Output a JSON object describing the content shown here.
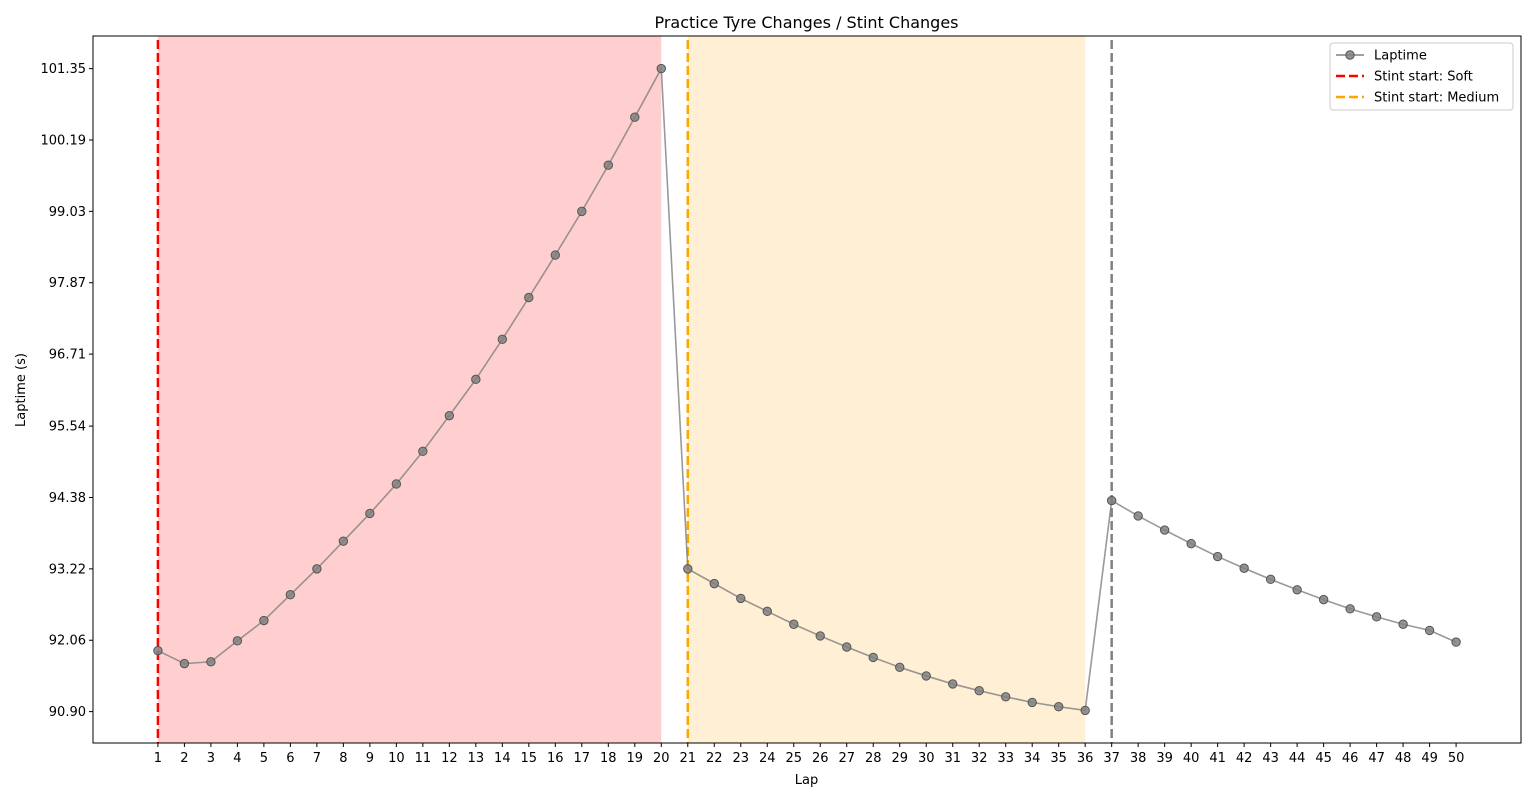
{
  "chart_data": {
    "type": "line",
    "title": "Practice Tyre Changes / Stint Changes",
    "xlabel": "Lap",
    "ylabel": "Laptime (s)",
    "x": [
      1,
      2,
      3,
      4,
      5,
      6,
      7,
      8,
      9,
      10,
      11,
      12,
      13,
      14,
      15,
      16,
      17,
      18,
      19,
      20,
      21,
      22,
      23,
      24,
      25,
      26,
      27,
      28,
      29,
      30,
      31,
      32,
      33,
      34,
      35,
      36,
      37,
      38,
      39,
      40,
      41,
      42,
      43,
      44,
      45,
      46,
      47,
      48,
      49,
      50
    ],
    "xticks": [
      "1",
      "2",
      "3",
      "4",
      "5",
      "6",
      "7",
      "8",
      "9",
      "10",
      "11",
      "12",
      "13",
      "14",
      "15",
      "16",
      "17",
      "18",
      "19",
      "20",
      "21",
      "22",
      "23",
      "24",
      "25",
      "26",
      "27",
      "28",
      "29",
      "30",
      "31",
      "32",
      "33",
      "34",
      "35",
      "36",
      "37",
      "38",
      "39",
      "40",
      "41",
      "42",
      "43",
      "44",
      "45",
      "46",
      "47",
      "48",
      "49",
      "50"
    ],
    "yticks": [
      "90.90",
      "92.06",
      "93.22",
      "94.38",
      "95.54",
      "96.71",
      "97.87",
      "99.03",
      "100.19",
      "101.35"
    ],
    "ytick_values": [
      90.9,
      92.06,
      93.22,
      94.38,
      95.54,
      96.71,
      97.87,
      99.03,
      100.19,
      101.35
    ],
    "xlim": [
      -1.45,
      52.45
    ],
    "ylim": [
      90.39,
      101.88
    ],
    "grid": false,
    "legend_position": "top-right",
    "series": [
      {
        "name": "Laptime",
        "color": "#808080",
        "values": [
          91.89,
          91.68,
          91.71,
          92.05,
          92.38,
          92.8,
          93.22,
          93.67,
          94.12,
          94.6,
          95.13,
          95.71,
          96.3,
          96.95,
          97.63,
          98.32,
          99.03,
          99.78,
          100.56,
          101.35,
          93.22,
          92.98,
          92.74,
          92.53,
          92.32,
          92.13,
          91.95,
          91.78,
          91.62,
          91.48,
          91.35,
          91.24,
          91.14,
          91.05,
          90.98,
          90.92,
          94.33,
          94.08,
          93.85,
          93.63,
          93.42,
          93.23,
          93.05,
          92.88,
          92.72,
          92.57,
          92.44,
          92.32,
          92.22,
          92.03
        ]
      }
    ],
    "stints": [
      {
        "label": "Stint start: Soft",
        "start_lap": 1,
        "end_lap": 20,
        "line_color": "#ff0000",
        "fill_color": "#ffcfcf",
        "in_legend": true
      },
      {
        "label": "Stint start: Medium",
        "start_lap": 21,
        "end_lap": 36,
        "line_color": "#ffa500",
        "fill_color": "#ffefd4",
        "in_legend": true
      },
      {
        "label": "",
        "start_lap": 37,
        "end_lap": null,
        "line_color": "#808080",
        "fill_color": null,
        "in_legend": false
      }
    ]
  }
}
